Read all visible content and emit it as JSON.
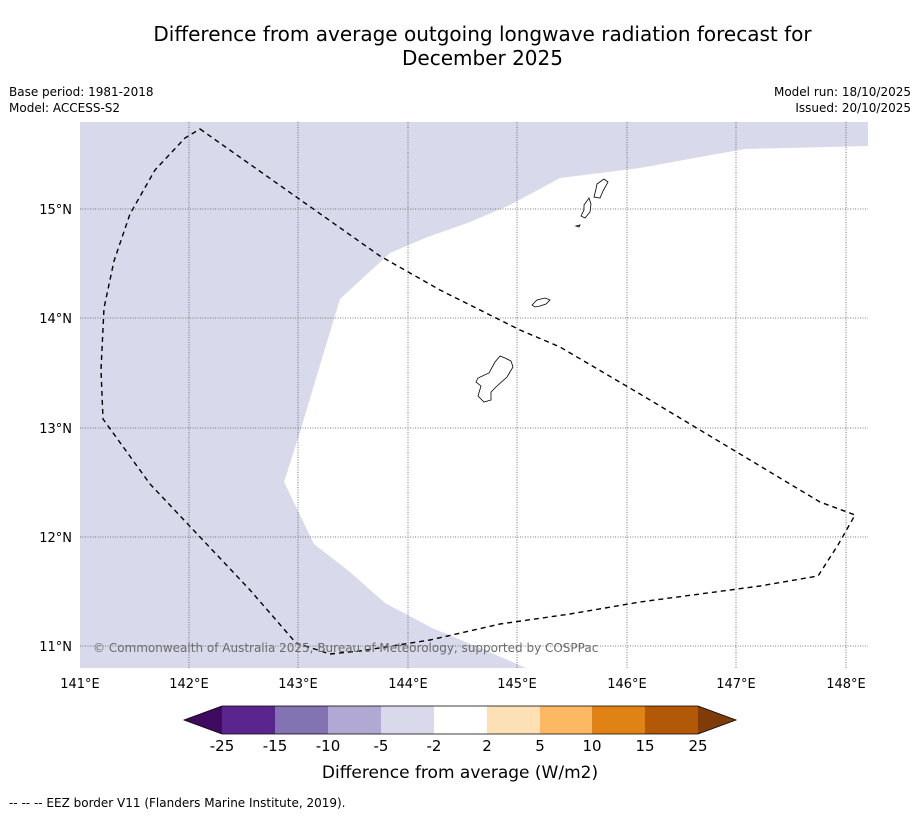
{
  "title_line1": "Difference from average outgoing longwave radiation forecast for",
  "title_line2": "December 2025",
  "base_period": "Base period: 1981-2018",
  "model": "Model: ACCESS-S2",
  "model_run": "Model run: 18/10/2025",
  "issued": "Issued: 20/10/2025",
  "copyright": "© Commonwealth of Australia 2025, Bureau of Meteorology, supported by COSPPac",
  "map": {
    "lon_ticks": [
      "141°E",
      "142°E",
      "143°E",
      "144°E",
      "145°E",
      "146°E",
      "147°E",
      "148°E"
    ],
    "lat_ticks": [
      "15°N",
      "14°N",
      "13°N",
      "12°N",
      "11°N"
    ]
  },
  "colorbar": {
    "label": "Difference from average (W/m2)",
    "ticks": [
      "-25",
      "-15",
      "-10",
      "-5",
      "-2",
      "2",
      "5",
      "10",
      "15",
      "25"
    ],
    "colors": [
      "#3f0b60",
      "#5b2590",
      "#8473b3",
      "#b1a9d4",
      "#d8d9ea",
      "#ffffff",
      "#fde0b6",
      "#fdb863",
      "#e08214",
      "#b35806",
      "#7f3b08"
    ]
  },
  "legend_note": "--  --  -- EEZ border V11 (Flanders Marine Institute, 2019)."
}
